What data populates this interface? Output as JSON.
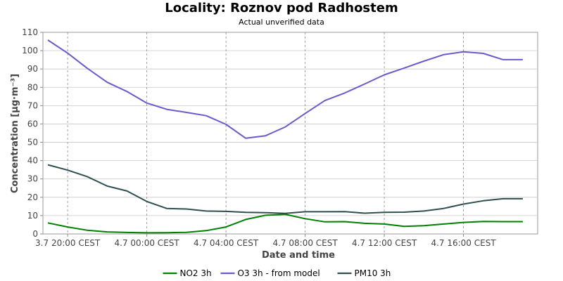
{
  "chart_data": {
    "type": "line",
    "title": "Locality: Roznov pod Radhostem",
    "subtitle": "Actual unverified data",
    "xlabel": "Date and time",
    "ylabel": "Concentration [µg·m⁻³]",
    "ylim": [
      0,
      110
    ],
    "yticks": [
      0,
      10,
      20,
      30,
      40,
      50,
      60,
      70,
      80,
      90,
      100,
      110
    ],
    "x_tick_labels": [
      "3.7 20:00 CEST",
      "4.7 00:00 CEST",
      "4.7 04:00 CEST",
      "4.7 08:00 CEST",
      "4.7 12:00 CEST",
      "4.7 16:00 CEST"
    ],
    "x_tick_hours": [
      0,
      4,
      8,
      12,
      16,
      20
    ],
    "x_range_hours": [
      -1.25,
      23.75
    ],
    "grid": true,
    "legend_position": "bottom",
    "x_hours": [
      -1,
      0,
      1,
      2,
      3,
      4,
      5,
      6,
      7,
      8,
      9,
      10,
      11,
      12,
      13,
      14,
      15,
      16,
      17,
      18,
      19,
      20,
      21,
      22,
      23
    ],
    "series": [
      {
        "name": "NO2 3h",
        "color": "#008000",
        "values": [
          6,
          3.8,
          2,
          1.1,
          0.8,
          0.6,
          0.7,
          0.9,
          1.8,
          3.8,
          7.9,
          10.2,
          10.7,
          8.3,
          6.6,
          6.7,
          5.8,
          5.4,
          4.1,
          4.5,
          5.4,
          6.3,
          6.8,
          6.7,
          6.7
        ]
      },
      {
        "name": "O3 3h - from model",
        "color": "#6a5acd",
        "values": [
          105.8,
          98.6,
          90.3,
          82.7,
          77.7,
          71.4,
          68,
          66.3,
          64.5,
          59.8,
          52.2,
          53.6,
          58.4,
          65.7,
          72.8,
          76.9,
          81.8,
          86.8,
          90.5,
          94.3,
          97.8,
          99.4,
          98.5,
          95.1,
          95.1
        ]
      },
      {
        "name": "PM10 3h",
        "color": "#2f4f4f",
        "values": [
          37.7,
          34.8,
          31.2,
          26.1,
          23.4,
          17.7,
          13.9,
          13.6,
          12.5,
          12.3,
          11.8,
          11.6,
          11.2,
          12.1,
          12.1,
          12.2,
          11.3,
          11.8,
          11.9,
          12.5,
          13.9,
          16.3,
          18.1,
          19.2,
          19.2
        ]
      }
    ]
  }
}
